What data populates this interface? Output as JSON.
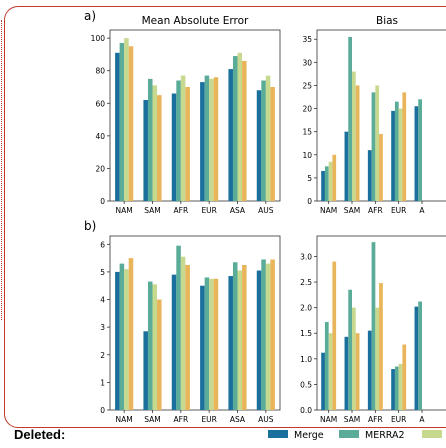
{
  "footer": {
    "deleted_label": "Deleted:"
  },
  "colors": {
    "merge": "#1a6f9c",
    "merra2": "#5aab98",
    "c3": "#c7d98e",
    "c4": "#e8b55a",
    "border": "#c0392b"
  },
  "legend": [
    {
      "name": "Merge",
      "color": "#1a6f9c"
    },
    {
      "name": "MERRA2",
      "color": "#5aab98"
    },
    {
      "name": "",
      "color": "#c7d98e"
    }
  ],
  "chart_data": [
    {
      "id": "a-left",
      "panel_label": "a)",
      "type": "bar",
      "title": "Mean Absolute Error",
      "categories": [
        "NAM",
        "SAM",
        "AFR",
        "EUR",
        "ASA",
        "AUS"
      ],
      "ylim": [
        0,
        105
      ],
      "yticks": [
        0,
        20,
        40,
        60,
        80,
        100
      ],
      "series": [
        {
          "name": "Merge",
          "values": [
            91,
            62,
            66,
            73,
            81,
            68
          ]
        },
        {
          "name": "MERRA2",
          "values": [
            97,
            75,
            74,
            77,
            89,
            74
          ]
        },
        {
          "name": "",
          "values": [
            100,
            71,
            77,
            75,
            91,
            77
          ]
        },
        {
          "name": "",
          "values": [
            95,
            65,
            70,
            76,
            86,
            70
          ]
        }
      ]
    },
    {
      "id": "a-right",
      "type": "bar",
      "title": "Bias",
      "categories": [
        "NAM",
        "SAM",
        "AFR",
        "EUR",
        "A"
      ],
      "ylim": [
        0,
        37
      ],
      "yticks": [
        0,
        5,
        10,
        15,
        20,
        25,
        30,
        35
      ],
      "series": [
        {
          "name": "Merge",
          "values": [
            6.5,
            15,
            11,
            19.5,
            20.5
          ]
        },
        {
          "name": "MERRA2",
          "values": [
            7.5,
            35.5,
            23.5,
            21.5,
            22
          ]
        },
        {
          "name": "",
          "values": [
            8.5,
            28,
            25,
            20,
            null
          ]
        },
        {
          "name": "",
          "values": [
            10,
            25,
            14.5,
            23.5,
            null
          ]
        }
      ]
    },
    {
      "id": "b-left",
      "panel_label": "b)",
      "type": "bar",
      "title": "",
      "categories": [
        "NAM",
        "SAM",
        "AFR",
        "EUR",
        "ASA",
        "AUS"
      ],
      "ylim": [
        0,
        6.3
      ],
      "yticks": [
        0,
        1,
        2,
        3,
        4,
        5,
        6
      ],
      "series": [
        {
          "name": "Merge",
          "values": [
            5.0,
            2.85,
            4.9,
            4.5,
            4.85,
            5.05
          ]
        },
        {
          "name": "MERRA2",
          "values": [
            5.3,
            4.65,
            5.95,
            4.8,
            5.35,
            5.45
          ]
        },
        {
          "name": "",
          "values": [
            5.1,
            4.55,
            5.55,
            4.75,
            5.05,
            5.3
          ]
        },
        {
          "name": "",
          "values": [
            5.5,
            4.0,
            5.25,
            4.75,
            5.25,
            5.45
          ]
        }
      ]
    },
    {
      "id": "b-right",
      "type": "bar",
      "title": "",
      "categories": [
        "NAM",
        "SAM",
        "AFR",
        "EUR",
        "A"
      ],
      "ylim": [
        0,
        3.4
      ],
      "yticks": [
        "0.0",
        "0.5",
        "1.0",
        "1.5",
        "2.0",
        "2.5",
        "3.0"
      ],
      "series": [
        {
          "name": "Merge",
          "values": [
            1.12,
            1.43,
            1.55,
            0.8,
            2.02
          ]
        },
        {
          "name": "MERRA2",
          "values": [
            1.72,
            2.35,
            3.28,
            0.85,
            2.12
          ]
        },
        {
          "name": "",
          "values": [
            1.5,
            2.0,
            2.0,
            0.9,
            null
          ]
        },
        {
          "name": "",
          "values": [
            2.9,
            1.5,
            2.48,
            1.28,
            null
          ]
        }
      ]
    }
  ]
}
